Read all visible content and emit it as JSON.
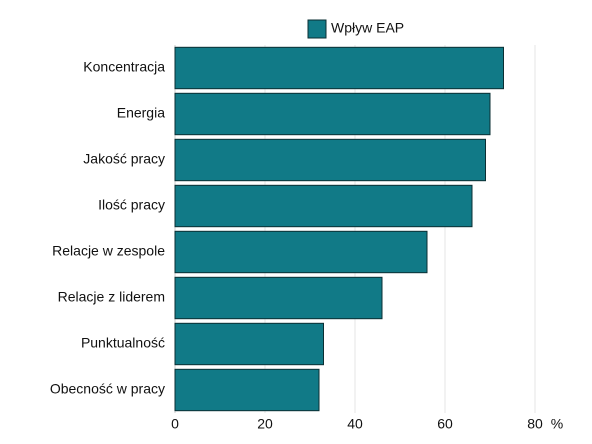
{
  "chart_data": {
    "type": "bar",
    "orientation": "horizontal",
    "categories": [
      "Koncentracja",
      "Energia",
      "Jakość pracy",
      "Ilość pracy",
      "Relacje w zespole",
      "Relacje z liderem",
      "Punktualność",
      "Obecność w pracy"
    ],
    "series": [
      {
        "name": "Wpływ EAP",
        "color": "#117a87",
        "values": [
          73,
          70,
          69,
          66,
          56,
          46,
          33,
          32
        ]
      }
    ],
    "xlabel": "%",
    "xlim": [
      0,
      80
    ],
    "xticks": [
      0,
      20,
      40,
      60,
      80
    ],
    "grid": true,
    "legend": "top"
  }
}
